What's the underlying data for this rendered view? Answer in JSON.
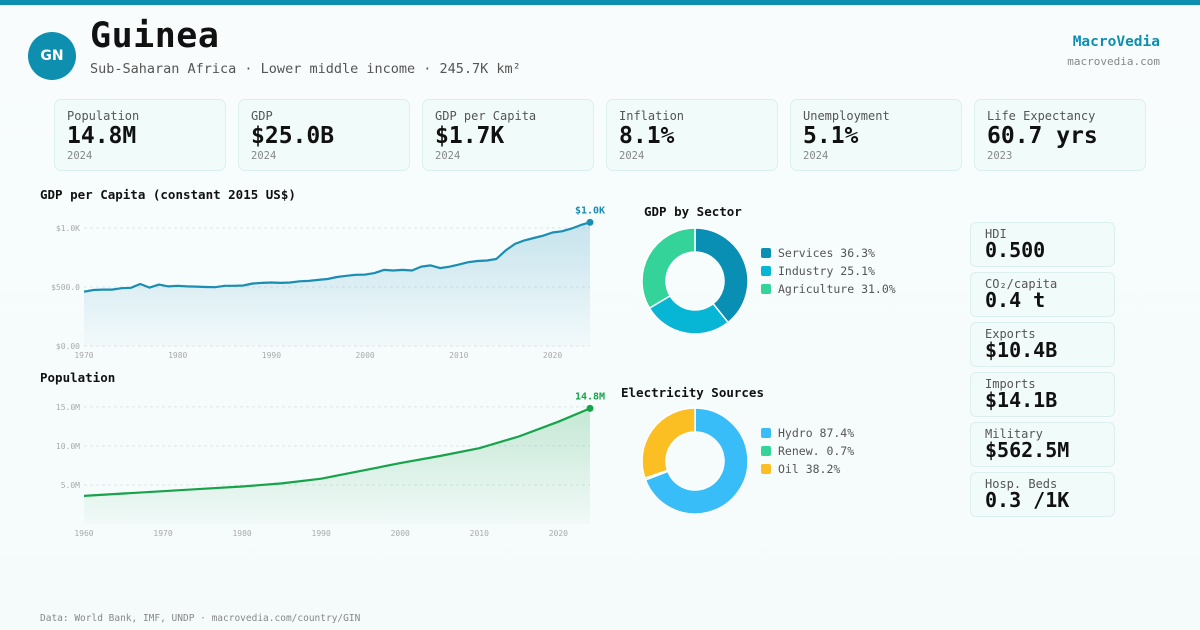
{
  "accent": "#0e8fb0",
  "country": {
    "code": "GN",
    "name": "Guinea",
    "subtitle": "Sub-Saharan Africa · Lower middle income · 245.7K km²"
  },
  "brand": {
    "name": "MacroVedia",
    "url": "macrovedia.com"
  },
  "stats": [
    {
      "label": "Population",
      "value": "14.8M",
      "year": "2024"
    },
    {
      "label": "GDP",
      "value": "$25.0B",
      "year": "2024"
    },
    {
      "label": "GDP per Capita",
      "value": "$1.7K",
      "year": "2024"
    },
    {
      "label": "Inflation",
      "value": "8.1%",
      "year": "2024"
    },
    {
      "label": "Unemployment",
      "value": "5.1%",
      "year": "2024"
    },
    {
      "label": "Life Expectancy",
      "value": "60.7 yrs",
      "year": "2023"
    }
  ],
  "side_stats": [
    {
      "label": "HDI",
      "value": "0.500"
    },
    {
      "label": "CO₂/capita",
      "value": "0.4 t"
    },
    {
      "label": "Exports",
      "value": "$10.4B"
    },
    {
      "label": "Imports",
      "value": "$14.1B"
    },
    {
      "label": "Military",
      "value": "$562.5M"
    },
    {
      "label": "Hosp. Beds",
      "value": "0.3 /1K"
    }
  ],
  "footer": "Data: World Bank, IMF, UNDP · macrovedia.com/country/GIN",
  "chart_data": [
    {
      "type": "area",
      "title": "GDP per Capita (constant 2015 US$)",
      "color": "#1a8db3",
      "end_label": "$1.0K",
      "xlim": [
        1970,
        2024
      ],
      "ylim": [
        0,
        1000
      ],
      "yticks": [
        0,
        500,
        1000
      ],
      "ytick_labels": [
        "$0.00",
        "$500.0",
        "$1.0K"
      ],
      "xticks": [
        1970,
        1980,
        1990,
        2000,
        2010,
        2020
      ],
      "x": [
        1970,
        1971,
        1972,
        1973,
        1974,
        1975,
        1976,
        1977,
        1978,
        1979,
        1980,
        1981,
        1982,
        1983,
        1984,
        1985,
        1986,
        1987,
        1988,
        1989,
        1990,
        1991,
        1992,
        1993,
        1994,
        1995,
        1996,
        1997,
        1998,
        1999,
        2000,
        2001,
        2002,
        2003,
        2004,
        2005,
        2006,
        2007,
        2008,
        2009,
        2010,
        2011,
        2012,
        2013,
        2014,
        2015,
        2016,
        2017,
        2018,
        2019,
        2020,
        2021,
        2022,
        2023,
        2024
      ],
      "y": [
        460,
        475,
        478,
        478,
        490,
        493,
        525,
        495,
        520,
        505,
        510,
        505,
        503,
        500,
        498,
        510,
        510,
        513,
        530,
        535,
        538,
        535,
        538,
        548,
        552,
        560,
        568,
        585,
        595,
        603,
        605,
        618,
        645,
        640,
        645,
        640,
        673,
        683,
        660,
        672,
        690,
        710,
        720,
        725,
        737,
        810,
        865,
        895,
        915,
        935,
        962,
        972,
        995,
        1025,
        1048
      ]
    },
    {
      "type": "area",
      "title": "Population",
      "color": "#16a34a",
      "end_label": "14.8M",
      "xlim": [
        1960,
        2024
      ],
      "ylim": [
        0,
        16
      ],
      "yticks": [
        5,
        10,
        15
      ],
      "ytick_labels": [
        "5.0M",
        "10.0M",
        "15.0M"
      ],
      "xticks": [
        1960,
        1970,
        1980,
        1990,
        2000,
        2010,
        2020
      ],
      "x": [
        1960,
        1965,
        1970,
        1975,
        1980,
        1985,
        1990,
        1992,
        1995,
        2000,
        2005,
        2010,
        2015,
        2020,
        2024
      ],
      "y": [
        3.6,
        3.9,
        4.2,
        4.5,
        4.8,
        5.2,
        5.8,
        6.2,
        6.8,
        7.8,
        8.7,
        9.7,
        11.2,
        13.1,
        14.8
      ]
    },
    {
      "type": "pie",
      "title": "GDP by Sector",
      "labels": [
        "Services",
        "Industry",
        "Agriculture"
      ],
      "values": [
        36.3,
        25.1,
        31.0
      ],
      "display": [
        "Services 36.3%",
        "Industry 25.1%",
        "Agriculture 31.0%"
      ],
      "colors": [
        "#0a8fb4",
        "#06b6d4",
        "#34d399"
      ]
    },
    {
      "type": "pie",
      "title": "Electricity Sources",
      "labels": [
        "Hydro",
        "Renew.",
        "Oil"
      ],
      "values": [
        87.4,
        0.7,
        38.2
      ],
      "display": [
        "Hydro 87.4%",
        "Renew. 0.7%",
        "Oil 38.2%"
      ],
      "colors": [
        "#38bdf8",
        "#34d399",
        "#fbbf24"
      ]
    }
  ]
}
